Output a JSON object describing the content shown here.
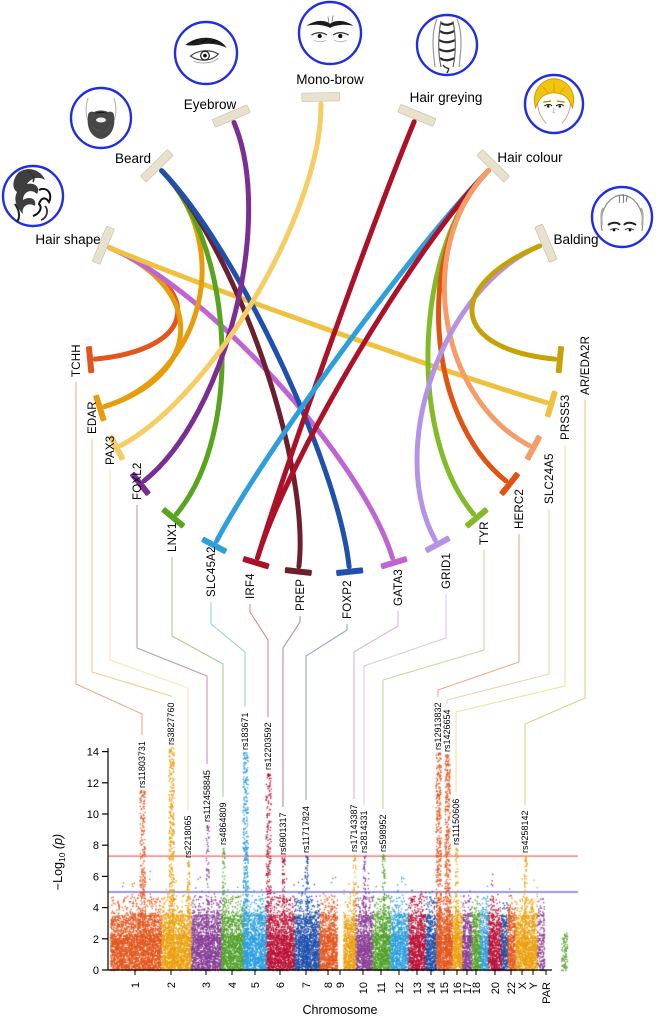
{
  "chart_data": [
    {
      "type": "chord",
      "description": "Hair/facial-hair trait to candidate gene chord diagram",
      "icon_ring_color": "#1f2ee0",
      "trait_tick_color": "#e8e1cd",
      "traits": [
        {
          "label": "Hair shape",
          "icon": "curly-hair-sketch-icon"
        },
        {
          "label": "Beard",
          "icon": "beard-sketch-icon"
        },
        {
          "label": "Eyebrow",
          "icon": "eyebrow-eye-sketch-icon"
        },
        {
          "label": "Mono-brow",
          "icon": "monobrow-eyes-sketch-icon"
        },
        {
          "label": "Hair greying",
          "icon": "hair-strands-sketch-icon"
        },
        {
          "label": "Hair colour",
          "icon": "blonde-face-sketch-icon"
        },
        {
          "label": "Balding",
          "icon": "balding-head-sketch-icon"
        }
      ],
      "genes": [
        {
          "label": "TCHH",
          "color": "#e2551c"
        },
        {
          "label": "EDAR",
          "color": "#e79d0a"
        },
        {
          "label": "PAX3",
          "color": "#f5cd64"
        },
        {
          "label": "FOXL2",
          "color": "#7b2d96"
        },
        {
          "label": "LNX1",
          "color": "#58a41f"
        },
        {
          "label": "SLC45A2",
          "color": "#2d9fdd"
        },
        {
          "label": "IRF4",
          "color": "#ac1128"
        },
        {
          "label": "PREP",
          "color": "#6d1f2e"
        },
        {
          "label": "FOXP2",
          "color": "#1f50ab"
        },
        {
          "label": "GATA3",
          "color": "#bf65d3"
        },
        {
          "label": "GRID1",
          "color": "#b493e6"
        },
        {
          "label": "TYR",
          "color": "#83bb28"
        },
        {
          "label": "HERC2",
          "color": "#df5413"
        },
        {
          "label": "SLC24A5",
          "color": "#f59c69"
        },
        {
          "label": "PRSS53",
          "color": "#eec23e"
        },
        {
          "label": "AR/EDA2R",
          "color": "#c5a307"
        }
      ],
      "links": [
        {
          "trait": "Hair shape",
          "gene": "TCHH"
        },
        {
          "trait": "Hair shape",
          "gene": "EDAR"
        },
        {
          "trait": "Hair shape",
          "gene": "GATA3"
        },
        {
          "trait": "Hair shape",
          "gene": "PRSS53"
        },
        {
          "trait": "Beard",
          "gene": "EDAR"
        },
        {
          "trait": "Beard",
          "gene": "LNX1"
        },
        {
          "trait": "Beard",
          "gene": "PREP"
        },
        {
          "trait": "Beard",
          "gene": "FOXP2"
        },
        {
          "trait": "Eyebrow",
          "gene": "FOXL2"
        },
        {
          "trait": "Mono-brow",
          "gene": "PAX3"
        },
        {
          "trait": "Hair greying",
          "gene": "IRF4"
        },
        {
          "trait": "Hair colour",
          "gene": "SLC45A2"
        },
        {
          "trait": "Hair colour",
          "gene": "IRF4"
        },
        {
          "trait": "Hair colour",
          "gene": "TYR"
        },
        {
          "trait": "Hair colour",
          "gene": "HERC2"
        },
        {
          "trait": "Hair colour",
          "gene": "SLC24A5"
        },
        {
          "trait": "Balding",
          "gene": "GRID1"
        },
        {
          "trait": "Balding",
          "gene": "AR/EDA2R"
        }
      ]
    },
    {
      "type": "scatter",
      "subtype": "manhattan",
      "xlabel": "Chromosome",
      "ylabel": "−Log10 (p)",
      "ylabel_parts": {
        "main": "−Log",
        "sub": "10",
        "tail": " (p)"
      },
      "ylim": [
        0,
        14
      ],
      "yticks": [
        0,
        2,
        4,
        6,
        8,
        10,
        12,
        14
      ],
      "grid": false,
      "significance_lines": [
        {
          "y": 7.3,
          "color": "#f4655c"
        },
        {
          "y": 5.0,
          "color": "#7379d9"
        }
      ],
      "chromosomes": [
        {
          "label": "1",
          "color": "#e2571e"
        },
        {
          "label": "2",
          "color": "#eaa00e"
        },
        {
          "label": "3",
          "color": "#8a3f97"
        },
        {
          "label": "4",
          "color": "#53a12c"
        },
        {
          "label": "5",
          "color": "#2d9fdd"
        },
        {
          "label": "6",
          "color": "#bb1238"
        },
        {
          "label": "7",
          "color": "#1f50ab"
        },
        {
          "label": "8",
          "color": "#e2571e"
        },
        {
          "label": "9",
          "color": "#eaa00e"
        },
        {
          "label": "10",
          "color": "#8a3f97"
        },
        {
          "label": "11",
          "color": "#53a12c"
        },
        {
          "label": "12",
          "color": "#2d9fdd"
        },
        {
          "label": "13",
          "color": "#bb1238"
        },
        {
          "label": "14",
          "color": "#1f50ab"
        },
        {
          "label": "15",
          "color": "#e2571e"
        },
        {
          "label": "16",
          "color": "#eaa00e"
        },
        {
          "label": "17",
          "color": "#8a3f97"
        },
        {
          "label": "18",
          "color": "#53a12c"
        },
        {
          "label": "",
          "color": "#2d9fdd"
        },
        {
          "label": "20",
          "color": "#bb1238"
        },
        {
          "label": "",
          "color": "#1f50ab"
        },
        {
          "label": "22",
          "color": "#e2571e"
        },
        {
          "label": "X",
          "color": "#eaa00e"
        },
        {
          "label": "Y",
          "color": "#8a3f97"
        },
        {
          "label": "PAR",
          "color": "#53a12c"
        }
      ],
      "peaks": [
        {
          "snp": "rs11803731",
          "gene": "TCHH",
          "chromosome": "1",
          "peak_logp": 11.5
        },
        {
          "snp": "rs3827760",
          "gene": "EDAR",
          "chromosome": "2",
          "peak_logp": 14.0
        },
        {
          "snp": "rs2218065",
          "gene": "PAX3",
          "chromosome": "2",
          "peak_logp": 7.1
        },
        {
          "snp": "rs112458845",
          "gene": "FOXL2",
          "chromosome": "3",
          "peak_logp": 9.4
        },
        {
          "snp": "rs4864809",
          "gene": "LNX1",
          "chromosome": "4",
          "peak_logp": 7.9
        },
        {
          "snp": "rs183671",
          "gene": "SLC45A2",
          "chromosome": "5",
          "peak_logp": 14.0
        },
        {
          "snp": "rs12203592",
          "gene": "IRF4",
          "chromosome": "6",
          "peak_logp": 12.7
        },
        {
          "snp": "rs6901317",
          "gene": "PREP",
          "chromosome": "6",
          "peak_logp": 7.2
        },
        {
          "snp": "rs11717824",
          "gene": "FOXP2",
          "chromosome": "7",
          "peak_logp": 7.4
        },
        {
          "snp": "rs17143387",
          "gene": "GATA3",
          "chromosome": "10",
          "peak_logp": 7.4
        },
        {
          "snp": "rs2814331",
          "gene": "GRID1",
          "chromosome": "10",
          "peak_logp": 7.4
        },
        {
          "snp": "rs598952",
          "gene": "TYR",
          "chromosome": "11",
          "peak_logp": 7.4
        },
        {
          "snp": "rs12913832",
          "gene": "HERC2",
          "chromosome": "15",
          "peak_logp": 14.0
        },
        {
          "snp": "rs1426654",
          "gene": "SLC24A5",
          "chromosome": "15",
          "peak_logp": 13.9
        },
        {
          "snp": "rs11150606",
          "gene": "PRSS53",
          "chromosome": "16",
          "peak_logp": 7.9
        },
        {
          "snp": "rs4258142",
          "gene": "AR/EDA2R",
          "chromosome": "X",
          "peak_logp": 7.4
        }
      ]
    }
  ]
}
